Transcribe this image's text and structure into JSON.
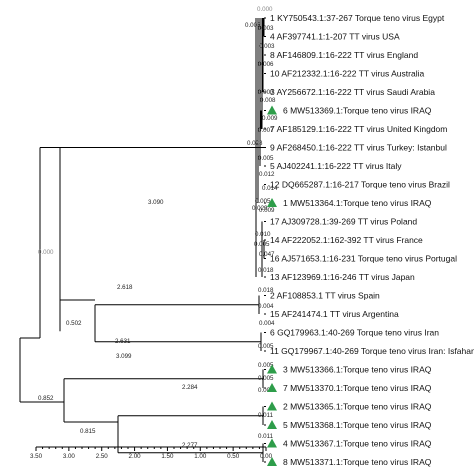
{
  "leaves": [
    {
      "label": "1 KY750543.1:37-267 Torque teno virus Egypt",
      "marked": false
    },
    {
      "label": "4 AF397741.1:1-207 TT virus USA",
      "marked": false
    },
    {
      "label": "8 AF146809.1:16-222 TT virus England",
      "marked": false
    },
    {
      "label": "10 AF212332.1:16-222 TT virus Australia",
      "marked": false
    },
    {
      "label": "3 AY256672.1:16-222 TT virus Saudi Arabia",
      "marked": false
    },
    {
      "label": "6 MW513369.1:Torque teno virus IRAQ",
      "marked": true
    },
    {
      "label": "7 AF185129.1:16-222 TT virus United Kingdom",
      "marked": false
    },
    {
      "label": "9 AF268450.1:16-222 TT virus Turkey: Istanbul",
      "marked": false
    },
    {
      "label": "5 AJ402241.1:16-222 TT virus Italy",
      "marked": false
    },
    {
      "label": "12 DQ665287.1:16-217 Torque teno virus Brazil",
      "marked": false
    },
    {
      "label": "1 MW513364.1:Torque teno virus IRAQ",
      "marked": true
    },
    {
      "label": "17 AJ309728.1:39-269 TT virus Poland",
      "marked": false
    },
    {
      "label": "14 AF222052.1:162-392 TT virus France",
      "marked": false
    },
    {
      "label": "16 AJ571653.1:16-231 Torque teno virus Portugal",
      "marked": false
    },
    {
      "label": "13 AF123969.1:16-246 TT virus Japan",
      "marked": false
    },
    {
      "label": "2 AF108853.1 TT virus Spain",
      "marked": false
    },
    {
      "label": "15 AF241474.1 TT virus Argentina",
      "marked": false
    },
    {
      "label": "6 GQ179963.1:40-269 Torque teno virus Iran",
      "marked": false
    },
    {
      "label": "11 GQ179967.1:40-269 Torque teno virus Iran: Isfahan",
      "marked": false
    },
    {
      "label": "3 MW513366.1:Torque teno virus IRAQ",
      "marked": true
    },
    {
      "label": "7 MW513370.1:Torque teno virus IRAQ",
      "marked": true
    },
    {
      "label": "2 MW513365.1:Torque teno virus IRAQ",
      "marked": true
    },
    {
      "label": "5 MW513368.1:Torque teno virus IRAQ",
      "marked": true
    },
    {
      "label": "4 MW513367.1:Torque teno virus IRAQ",
      "marked": true
    },
    {
      "label": "8 MW513371.1:Torque teno virus IRAQ",
      "marked": true
    }
  ],
  "branch_lengths": [
    {
      "value": "0.000",
      "faded": true
    },
    {
      "value": "0.003"
    },
    {
      "value": "0.003"
    },
    {
      "value": "0.003"
    },
    {
      "value": "0.006"
    },
    {
      "value": "0.000"
    },
    {
      "value": "0.008"
    },
    {
      "value": "0.009"
    },
    {
      "value": "0.007"
    },
    {
      "value": "0.028"
    },
    {
      "value": "0.005"
    },
    {
      "value": "0.012"
    },
    {
      "value": "0.014"
    },
    {
      "value": "0.005"
    },
    {
      "value": "0.029"
    },
    {
      "value": "0.009"
    },
    {
      "value": "0.010"
    },
    {
      "value": "0.005"
    },
    {
      "value": "0.047"
    },
    {
      "value": "0.018"
    },
    {
      "value": "0.018"
    },
    {
      "value": "0.004"
    },
    {
      "value": "0.004"
    },
    {
      "value": "0.005"
    },
    {
      "value": "0.005"
    },
    {
      "value": "0.005"
    },
    {
      "value": "0.005"
    },
    {
      "value": "0.011"
    },
    {
      "value": "0.011"
    },
    {
      "value": "3.090"
    },
    {
      "value": "0.000",
      "faded": true
    },
    {
      "value": "2.618"
    },
    {
      "value": "0.502"
    },
    {
      "value": "2.631"
    },
    {
      "value": "3.099"
    },
    {
      "value": "2.284"
    },
    {
      "value": "0.852"
    },
    {
      "value": "0.815"
    },
    {
      "value": "2.277"
    }
  ],
  "axis": {
    "ticks": [
      "3.50",
      "3.00",
      "2.50",
      "2.00",
      "1.50",
      "1.00",
      "0.50",
      "0.00"
    ]
  },
  "colors": {
    "marker": "#2e9d4a",
    "faded_label": "#8a8a8a"
  }
}
